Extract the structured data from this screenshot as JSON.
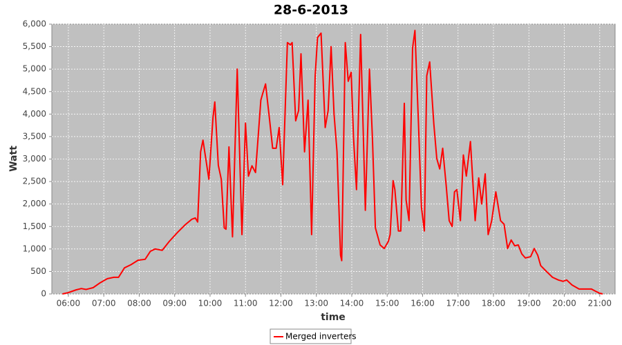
{
  "chart_data": {
    "type": "line",
    "title": "28-6-2013",
    "x_label": "time",
    "y_label": "Watt",
    "x": [
      "05:50",
      "06:00",
      "06:13",
      "06:22",
      "06:30",
      "06:42",
      "06:54",
      "07:06",
      "07:17",
      "07:25",
      "07:35",
      "07:46",
      "07:58",
      "08:10",
      "08:19",
      "08:27",
      "08:39",
      "08:51",
      "09:05",
      "09:18",
      "09:29",
      "09:35",
      "09:39",
      "09:44",
      "09:48",
      "09:58",
      "10:05",
      "10:08",
      "10:14",
      "10:19",
      "10:24",
      "10:27",
      "10:32",
      "10:38",
      "10:46",
      "10:54",
      "11:00",
      "11:05",
      "11:11",
      "11:17",
      "11:26",
      "11:29",
      "11:34",
      "11:41",
      "11:46",
      "11:52",
      "11:57",
      "12:03",
      "12:11",
      "12:16",
      "12:19",
      "12:25",
      "12:30",
      "12:34",
      "12:40",
      "12:46",
      "12:52",
      "12:58",
      "13:02",
      "13:08",
      "13:15",
      "13:20",
      "13:25",
      "13:30",
      "13:35",
      "13:41",
      "13:43",
      "13:49",
      "13:54",
      "13:59",
      "14:03",
      "14:08",
      "14:15",
      "14:23",
      "14:30",
      "14:35",
      "14:40",
      "14:48",
      "14:55",
      "15:02",
      "15:05",
      "15:10",
      "15:13",
      "15:19",
      "15:23",
      "15:29",
      "15:32",
      "15:37",
      "15:43",
      "15:47",
      "15:53",
      "15:58",
      "16:03",
      "16:07",
      "16:12",
      "16:19",
      "16:24",
      "16:29",
      "16:34",
      "16:40",
      "16:45",
      "16:50",
      "16:54",
      "16:58",
      "17:04",
      "17:09",
      "17:14",
      "17:21",
      "17:29",
      "17:35",
      "17:40",
      "17:46",
      "17:51",
      "17:57",
      "18:04",
      "18:12",
      "18:18",
      "18:24",
      "18:30",
      "18:36",
      "18:42",
      "18:48",
      "18:54",
      "19:03",
      "19:09",
      "19:15",
      "19:20",
      "19:29",
      "19:40",
      "19:50",
      "19:58",
      "20:04",
      "20:13",
      "20:25",
      "20:37",
      "20:46",
      "20:53",
      "21:00",
      "21:05"
    ],
    "series": [
      {
        "name": "Merged inverters",
        "color": "#ff0000",
        "values": [
          0,
          30,
          90,
          120,
          100,
          140,
          250,
          340,
          370,
          370,
          580,
          650,
          750,
          770,
          950,
          1000,
          970,
          1170,
          1370,
          1540,
          1660,
          1690,
          1600,
          3160,
          3420,
          2550,
          3930,
          4270,
          2860,
          2550,
          1470,
          1440,
          3270,
          1270,
          5000,
          1320,
          3800,
          2620,
          2850,
          2700,
          4310,
          4450,
          4670,
          3850,
          3240,
          3240,
          3700,
          2430,
          5590,
          5540,
          5590,
          3850,
          4080,
          5340,
          3160,
          4310,
          1320,
          4850,
          5700,
          5800,
          3700,
          4080,
          5500,
          4000,
          3160,
          860,
          740,
          5590,
          4730,
          4930,
          3470,
          2320,
          5770,
          1860,
          5000,
          3470,
          1470,
          1090,
          1010,
          1170,
          1320,
          2520,
          2320,
          1400,
          1400,
          4240,
          2090,
          1630,
          5470,
          5860,
          3780,
          1930,
          1400,
          4850,
          5160,
          3780,
          3010,
          2780,
          3240,
          2400,
          1630,
          1500,
          2270,
          2320,
          1630,
          3090,
          2620,
          3390,
          1630,
          2580,
          2000,
          2670,
          1320,
          1630,
          2270,
          1630,
          1550,
          1010,
          1200,
          1070,
          1090,
          890,
          800,
          830,
          1010,
          860,
          630,
          510,
          370,
          310,
          280,
          310,
          200,
          110,
          110,
          110,
          60,
          15,
          0
        ]
      }
    ],
    "xlim": [
      "05:32",
      "21:26"
    ],
    "xticks": [
      "06:00",
      "07:00",
      "08:00",
      "09:00",
      "10:00",
      "11:00",
      "12:00",
      "13:00",
      "14:00",
      "15:00",
      "16:00",
      "17:00",
      "18:00",
      "19:00",
      "20:00",
      "21:00"
    ],
    "ylim": [
      0,
      6000
    ],
    "yticks": [
      0,
      500,
      {
        "value": 1000,
        "label": "1,000"
      },
      {
        "value": 1500,
        "label": "1,500"
      },
      {
        "value": 2000,
        "label": "2,000"
      },
      {
        "value": 2500,
        "label": "2,500"
      },
      {
        "value": 3000,
        "label": "3,000"
      },
      {
        "value": 3500,
        "label": "3,500"
      },
      {
        "value": 4000,
        "label": "4,000"
      },
      {
        "value": 4500,
        "label": "4,500"
      },
      {
        "value": 5000,
        "label": "5,000"
      },
      {
        "value": 5500,
        "label": "5,500"
      },
      {
        "value": 6000,
        "label": "6,000"
      }
    ],
    "grid": true,
    "legend": "bottom"
  }
}
